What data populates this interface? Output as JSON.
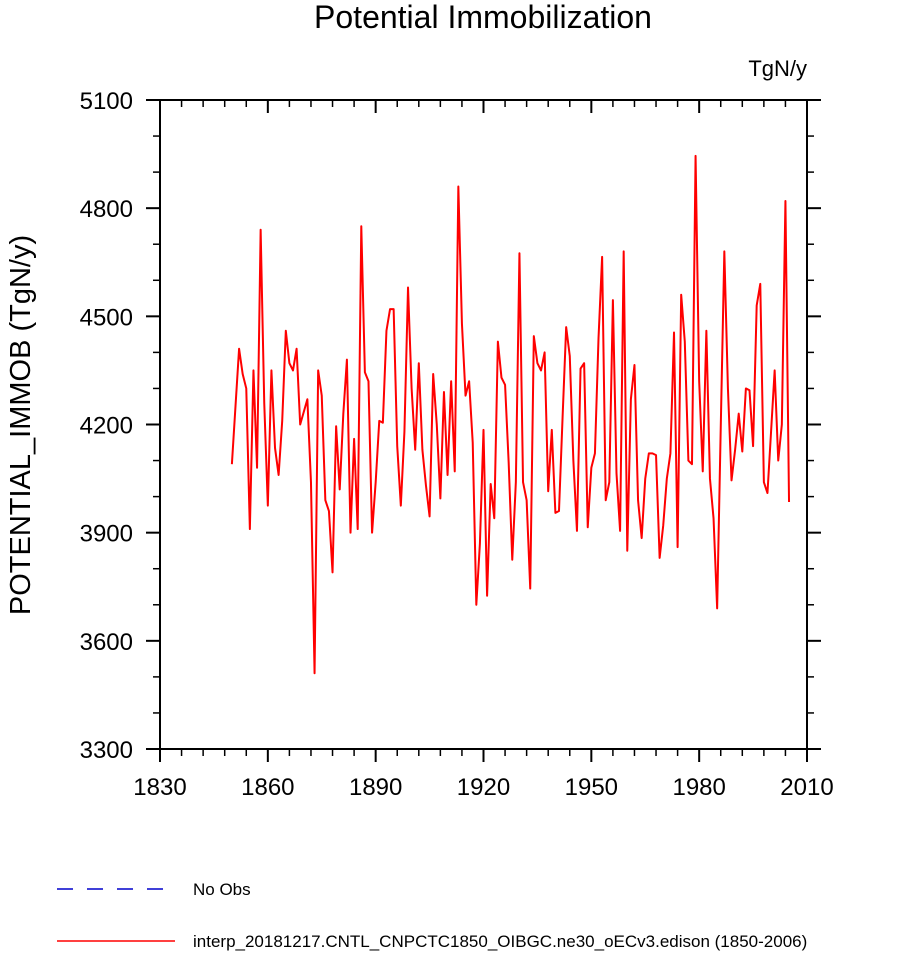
{
  "chart_data": {
    "type": "line",
    "title": "Potential Immobilization",
    "units_label": "TgN/y",
    "ylabel": "POTENTIAL_IMMOB  (TgN/y)",
    "xlabel": "",
    "xlim": [
      1830,
      2010
    ],
    "ylim": [
      3300,
      5100
    ],
    "x_ticks": [
      1830,
      1860,
      1890,
      1920,
      1950,
      1980,
      2010
    ],
    "y_ticks": [
      3300,
      3600,
      3900,
      4200,
      4500,
      4800,
      5100
    ],
    "grid": false,
    "legend_placement": "bottom-left",
    "legend": [
      {
        "name": "No Obs",
        "color": "#0000cc",
        "style": "dashed"
      },
      {
        "name": "interp_20181217.CNTL_CNPCTC1850_OIBGC.ne30_oECv3.edison (1850-2006)",
        "color": "#ff0000",
        "style": "solid"
      }
    ],
    "series": [
      {
        "name": "interp_20181217.CNTL_CNPCTC1850_OIBGC.ne30_oECv3.edison (1850-2006)",
        "color": "#ff0000",
        "x_start": 1850,
        "x_step": 1,
        "values": [
          4090,
          4250,
          4410,
          4340,
          4300,
          3910,
          4350,
          4080,
          4740,
          4260,
          3975,
          4350,
          4135,
          4060,
          4210,
          4460,
          4370,
          4350,
          4410,
          4200,
          4235,
          4270,
          4040,
          3510,
          4350,
          4280,
          3990,
          3960,
          3790,
          4195,
          4020,
          4230,
          4380,
          3900,
          4160,
          3910,
          4750,
          4345,
          4320,
          3900,
          4040,
          4210,
          4205,
          4460,
          4520,
          4520,
          4140,
          3975,
          4180,
          4580,
          4300,
          4130,
          4370,
          4130,
          4030,
          3945,
          4340,
          4200,
          3995,
          4290,
          4060,
          4320,
          4070,
          4860,
          4480,
          4280,
          4320,
          4150,
          3700,
          3870,
          4185,
          3725,
          4035,
          3940,
          4430,
          4330,
          4310,
          4095,
          3825,
          4040,
          4675,
          4040,
          3990,
          3745,
          4445,
          4370,
          4350,
          4400,
          4015,
          4185,
          3955,
          3960,
          4220,
          4470,
          4390,
          4100,
          3905,
          4355,
          4370,
          3915,
          4080,
          4120,
          4440,
          4665,
          3990,
          4040,
          4545,
          4065,
          3905,
          4680,
          3850,
          4270,
          4365,
          3990,
          3885,
          4050,
          4120,
          4120,
          4115,
          3830,
          3920,
          4050,
          4120,
          4455,
          3860,
          4560,
          4430,
          4100,
          4090,
          4945,
          4320,
          4070,
          4460,
          4050,
          3940,
          3690,
          4190,
          4680,
          4300,
          4045,
          4130,
          4230,
          4125,
          4300,
          4295,
          4140,
          4530,
          4590,
          4040,
          4010,
          4180,
          4350,
          4100,
          4200,
          4820,
          3985
        ]
      },
      {
        "name": "No Obs",
        "color": "#0000cc",
        "values": []
      }
    ]
  }
}
